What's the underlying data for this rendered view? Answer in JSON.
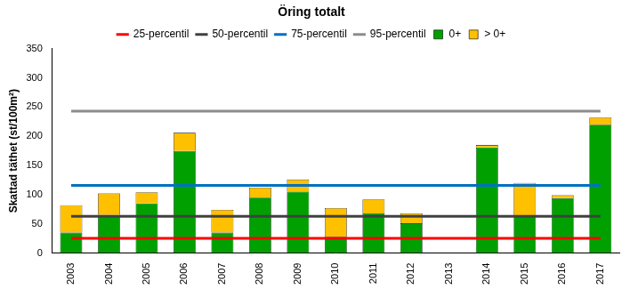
{
  "chart_data": {
    "type": "bar",
    "title": "Öring totalt",
    "y_label": "Skattad täthet (st/100m²)",
    "categories": [
      "2003",
      "2004",
      "2005",
      "2006",
      "2007",
      "2008",
      "2009",
      "2010",
      "2011",
      "2012",
      "2013",
      "2014",
      "2015",
      "2016",
      "2017"
    ],
    "series": [
      {
        "name": "0+",
        "color": "#00a000",
        "values": [
          35,
          65,
          85,
          175,
          35,
          95,
          105,
          28,
          68,
          51,
          null,
          181,
          63,
          94,
          220
        ]
      },
      {
        "name": "> 0+",
        "color": "#ffc000",
        "values": [
          47,
          37,
          19,
          31,
          39,
          17,
          21,
          49,
          24,
          17,
          null,
          4,
          57,
          5,
          12
        ]
      }
    ],
    "reference_lines": [
      {
        "name": "25-percentil",
        "color": "#ff0000",
        "value": 25
      },
      {
        "name": "50-percentil",
        "color": "#404040",
        "value": 63
      },
      {
        "name": "75-percentil",
        "color": "#0070c0",
        "value": 116
      },
      {
        "name": "95-percentil",
        "color": "#8c8c8c",
        "value": 243
      }
    ],
    "stacked": true,
    "ylim": [
      0,
      350
    ],
    "yticks": [
      0,
      50,
      100,
      150,
      200,
      250,
      300,
      350
    ],
    "grid": false,
    "legend": "top"
  }
}
